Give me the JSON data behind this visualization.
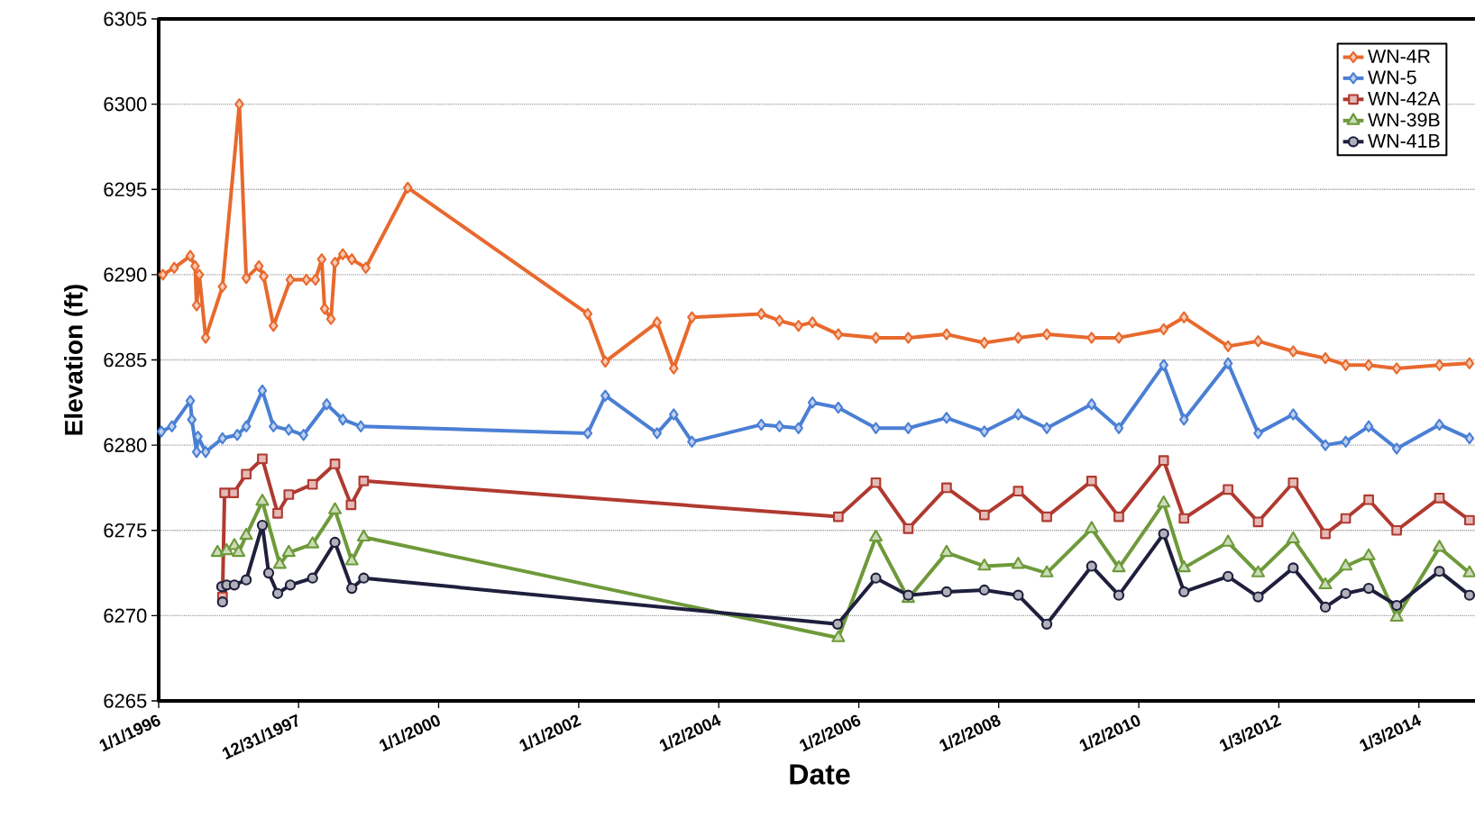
{
  "chart_data": {
    "type": "line",
    "xlabel": "Date",
    "ylabel": "Elevation (ft)",
    "xlim": [
      "1996-01-01",
      "2014-11-20"
    ],
    "ylim": [
      6265,
      6305
    ],
    "xticks": [
      {
        "value": "1996-01-01",
        "label": "1/1/1996"
      },
      {
        "value": "1997-12-31",
        "label": "12/31/1997"
      },
      {
        "value": "2000-01-01",
        "label": "1/1/2000"
      },
      {
        "value": "2002-01-01",
        "label": "1/1/2002"
      },
      {
        "value": "2004-01-02",
        "label": "1/2/2004"
      },
      {
        "value": "2006-01-02",
        "label": "1/2/2006"
      },
      {
        "value": "2008-01-02",
        "label": "1/2/2008"
      },
      {
        "value": "2010-01-02",
        "label": "1/2/2010"
      },
      {
        "value": "2012-01-03",
        "label": "1/3/2012"
      },
      {
        "value": "2014-01-03",
        "label": "1/3/2014"
      }
    ],
    "yticks": [
      6265,
      6270,
      6275,
      6280,
      6285,
      6290,
      6295,
      6300,
      6305
    ],
    "grid": "y",
    "legend": "top right",
    "line_style": "solid",
    "series": [
      {
        "name": "WN-4R",
        "color": "#e8692d",
        "marker": "diamond",
        "x": [
          "1996-01-23",
          "1996-03-22",
          "1996-06-14",
          "1996-07-09",
          "1996-07-17",
          "1996-07-31",
          "1996-09-02",
          "1996-11-29",
          "1997-02-25",
          "1997-04-02",
          "1997-06-07",
          "1997-07-02",
          "1997-08-22",
          "1997-11-18",
          "1998-02-10",
          "1998-03-29",
          "1998-05-01",
          "1998-05-16",
          "1998-06-18",
          "1998-07-09",
          "1998-08-19",
          "1998-10-05",
          "1998-12-17",
          "1999-07-24",
          "2002-02-17",
          "2002-05-20",
          "2003-02-14",
          "2003-05-12",
          "2003-08-15",
          "2004-08-11",
          "2004-11-14",
          "2005-02-21",
          "2005-05-05",
          "2005-09-17",
          "2006-04-01",
          "2006-09-17",
          "2007-04-05",
          "2007-10-19",
          "2008-04-13",
          "2008-09-09",
          "2009-05-01",
          "2009-09-20",
          "2010-05-12",
          "2010-08-26",
          "2011-04-13",
          "2011-09-17",
          "2012-03-18",
          "2012-09-02",
          "2012-12-17",
          "2013-04-16",
          "2013-09-09",
          "2014-04-20",
          "2014-09-24"
        ],
        "values": [
          6290.0,
          6290.4,
          6291.1,
          6290.5,
          6288.2,
          6290.0,
          6286.3,
          6289.3,
          6300.0,
          6289.8,
          6290.5,
          6289.9,
          6287.0,
          6289.7,
          6289.7,
          6289.7,
          6290.9,
          6288.0,
          6287.4,
          6290.7,
          6291.2,
          6290.9,
          6290.4,
          6295.1,
          6287.7,
          6284.9,
          6287.2,
          6284.5,
          6287.5,
          6287.7,
          6287.3,
          6287.0,
          6287.2,
          6286.5,
          6286.3,
          6286.3,
          6286.5,
          6286.0,
          6286.3,
          6286.5,
          6286.3,
          6286.3,
          6286.8,
          6287.5,
          6285.8,
          6286.1,
          6285.5,
          6285.1,
          6284.7,
          6284.7,
          6284.5,
          6284.7,
          6284.8
        ]
      },
      {
        "name": "WN-5",
        "color": "#4a7fd4",
        "marker": "diamond",
        "x": [
          "1996-01-15",
          "1996-03-10",
          "1996-06-14",
          "1996-06-22",
          "1996-07-17",
          "1996-07-24",
          "1996-09-02",
          "1996-11-29",
          "1997-02-14",
          "1997-04-02",
          "1997-06-25",
          "1997-08-22",
          "1997-11-10",
          "1998-01-26",
          "1998-05-27",
          "1998-08-19",
          "1998-11-21",
          "2002-02-17",
          "2002-05-20",
          "2003-02-14",
          "2003-05-12",
          "2003-08-15",
          "2004-08-11",
          "2004-11-14",
          "2005-02-21",
          "2005-05-05",
          "2005-09-17",
          "2006-04-01",
          "2006-09-17",
          "2007-04-05",
          "2007-10-19",
          "2008-04-13",
          "2008-09-09",
          "2009-05-01",
          "2009-09-20",
          "2010-05-12",
          "2010-08-26",
          "2011-04-13",
          "2011-09-17",
          "2012-03-18",
          "2012-09-02",
          "2012-12-17",
          "2013-04-16",
          "2013-09-09",
          "2014-04-20",
          "2014-09-24"
        ],
        "values": [
          6280.8,
          6281.1,
          6282.6,
          6281.5,
          6279.6,
          6280.5,
          6279.6,
          6280.4,
          6280.6,
          6281.1,
          6283.2,
          6281.1,
          6280.9,
          6280.6,
          6282.4,
          6281.5,
          6281.1,
          6280.7,
          6282.9,
          6280.7,
          6281.8,
          6280.2,
          6281.2,
          6281.1,
          6281.0,
          6282.5,
          6282.2,
          6281.0,
          6281.0,
          6281.6,
          6280.8,
          6281.8,
          6281.0,
          6282.4,
          6281.0,
          6284.7,
          6281.5,
          6284.8,
          6280.7,
          6281.8,
          6280.0,
          6280.2,
          6281.1,
          6279.8,
          6281.2,
          6280.4
        ]
      },
      {
        "name": "WN-42A",
        "color": "#b03a30",
        "marker": "square",
        "x": [
          "1996-11-29",
          "1996-12-10",
          "1997-01-26",
          "1997-04-02",
          "1997-06-25",
          "1997-09-13",
          "1997-11-10",
          "1998-03-14",
          "1998-07-09",
          "1998-10-01",
          "1998-12-06",
          "2005-09-17",
          "2006-04-01",
          "2006-09-17",
          "2007-04-05",
          "2007-10-19",
          "2008-04-13",
          "2008-09-09",
          "2009-05-01",
          "2009-09-20",
          "2010-05-12",
          "2010-08-26",
          "2011-04-13",
          "2011-09-17",
          "2012-03-18",
          "2012-09-02",
          "2012-12-17",
          "2013-04-16",
          "2013-09-09",
          "2014-04-20",
          "2014-09-24"
        ],
        "values": [
          6271.1,
          6277.2,
          6277.2,
          6278.3,
          6279.2,
          6276.0,
          6277.1,
          6277.7,
          6278.9,
          6276.5,
          6277.9,
          6275.8,
          6277.8,
          6275.1,
          6277.5,
          6275.9,
          6277.3,
          6275.8,
          6277.9,
          6275.8,
          6279.1,
          6275.7,
          6277.4,
          6275.5,
          6277.8,
          6274.8,
          6275.7,
          6276.8,
          6275.0,
          6276.9,
          6275.6
        ]
      },
      {
        "name": "WN-39B",
        "color": "#6e9a3a",
        "marker": "triangle",
        "x": [
          "1996-11-03",
          "1996-12-21",
          "1997-01-30",
          "1997-02-21",
          "1997-04-02",
          "1997-06-25",
          "1997-09-24",
          "1997-11-10",
          "1998-03-14",
          "1998-07-09",
          "1998-10-05",
          "1998-12-06",
          "2005-09-17",
          "2006-04-01",
          "2006-09-17",
          "2007-04-05",
          "2007-10-19",
          "2008-04-13",
          "2008-09-09",
          "2009-05-01",
          "2009-09-20",
          "2010-05-12",
          "2010-08-26",
          "2011-04-13",
          "2011-09-17",
          "2012-03-18",
          "2012-09-02",
          "2012-12-17",
          "2013-04-16",
          "2013-09-09",
          "2014-04-20",
          "2014-09-24"
        ],
        "values": [
          6273.7,
          6273.8,
          6274.1,
          6273.7,
          6274.7,
          6276.7,
          6273.0,
          6273.7,
          6274.2,
          6276.2,
          6273.2,
          6274.6,
          6268.7,
          6274.6,
          6271.0,
          6273.7,
          6272.9,
          6273.0,
          6272.5,
          6275.1,
          6272.8,
          6276.6,
          6272.8,
          6274.3,
          6272.5,
          6274.5,
          6271.8,
          6272.9,
          6273.5,
          6269.9,
          6274.0,
          6272.5
        ]
      },
      {
        "name": "WN-41B",
        "color": "#1f1f3d",
        "marker": "circle",
        "x": [
          "1996-11-25",
          "1996-11-29",
          "1996-12-21",
          "1997-01-30",
          "1997-04-02",
          "1997-06-25",
          "1997-07-28",
          "1997-09-13",
          "1997-11-18",
          "1998-03-14",
          "1998-07-09",
          "1998-10-05",
          "1998-12-06",
          "2005-09-13",
          "2006-04-01",
          "2006-09-17",
          "2007-04-05",
          "2007-10-19",
          "2008-04-13",
          "2008-09-09",
          "2009-05-01",
          "2009-09-20",
          "2010-05-12",
          "2010-08-26",
          "2011-04-13",
          "2011-09-17",
          "2012-03-18",
          "2012-09-02",
          "2012-12-17",
          "2013-04-16",
          "2013-09-09",
          "2014-04-20",
          "2014-09-24"
        ],
        "values": [
          6271.7,
          6270.8,
          6271.8,
          6271.8,
          6272.1,
          6275.3,
          6272.5,
          6271.3,
          6271.8,
          6272.2,
          6274.3,
          6271.6,
          6272.2,
          6269.5,
          6272.2,
          6271.2,
          6271.4,
          6271.5,
          6271.2,
          6269.5,
          6272.9,
          6271.2,
          6274.8,
          6271.4,
          6272.3,
          6271.1,
          6272.8,
          6270.5,
          6271.3,
          6271.6,
          6270.6,
          6272.6,
          6271.2
        ]
      }
    ]
  }
}
